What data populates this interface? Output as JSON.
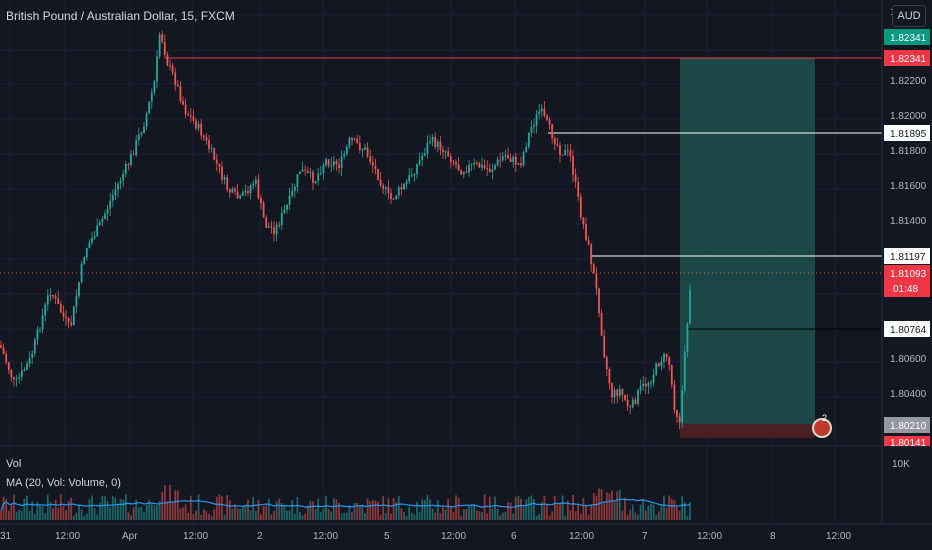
{
  "header": {
    "title": "British Pound / Australian Dollar, 15, FXCM"
  },
  "currency_button": "AUD",
  "volume_pane": {
    "vol_label": "Vol",
    "ma_label": "MA (20, Vol: Volume, 0)",
    "axis_label": "10K"
  },
  "price_axis": {
    "ticks": [
      "1.82200",
      "1.82000",
      "1.81800",
      "1.81600",
      "1.81400",
      "1.80600",
      "1.80400"
    ],
    "top_partial": "1."
  },
  "time_axis": {
    "ticks": [
      "31",
      "12:00",
      "Apr",
      "12:00",
      "2",
      "12:00",
      "5",
      "12:00",
      "6",
      "12:00",
      "7",
      "12:00",
      "8",
      "12:00"
    ]
  },
  "price_tags": {
    "target_green": "1.82341",
    "target_red": "1.82341",
    "level_1": "1.81895",
    "level_2": "1.81197",
    "current_price": "1.81093",
    "countdown": "01:48",
    "level_3": "1.80764",
    "entry": "1.80210",
    "stop_partial": "1.80141"
  },
  "event_badge": {
    "count": "2"
  },
  "colors": {
    "background": "#131722",
    "up": "#26a69a",
    "down": "#ef5350",
    "red_line": "#f23645",
    "white_line": "#ffffff",
    "target_zone": "#1d4e4a",
    "stop_zone": "#4a1f22",
    "ma_line": "#2196f3"
  }
}
